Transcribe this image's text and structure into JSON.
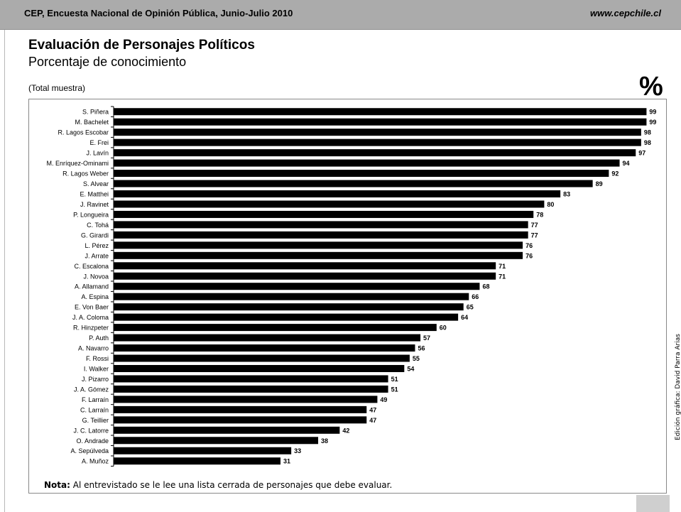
{
  "header": {
    "left_text": "CEP, Encuesta Nacional de Opinión Pública, Junio-Julio 2010",
    "right_text": "www.cepchile.cl"
  },
  "page": {
    "title": "Evaluación de Personajes Políticos",
    "subtitle": "Porcentaje de conocimiento",
    "sample": "(Total muestra)",
    "percent_sign": "%",
    "note_label": "Nota:",
    "note_text": " Al entrevistado se le lee una lista cerrada de personajes que debe evaluar.",
    "credit": "Edición gráfica: David Parra Arias"
  },
  "colors": {
    "bar": "#000000",
    "header": "#ababab"
  },
  "chart_data": {
    "type": "bar",
    "orientation": "horizontal",
    "title": "Evaluación de Personajes Políticos",
    "subtitle": "Porcentaje de conocimiento",
    "xlim": [
      0,
      100
    ],
    "grid": false,
    "categories": [
      "S. Piñera",
      "M. Bachelet",
      "R. Lagos Escobar",
      "E. Frei",
      "J. Lavín",
      "M. Enríquez-Ominami",
      "R. Lagos Weber",
      "S. Alvear",
      "E. Matthei",
      "J. Ravinet",
      "P. Longueira",
      "C. Tohá",
      "G. Girardi",
      "L. Pérez",
      "J. Arrate",
      "C. Escalona",
      "J. Novoa",
      "A. Allamand",
      "A. Espina",
      "E. Von Baer",
      "J. A. Coloma",
      "R. Hinzpeter",
      "P. Auth",
      "A. Navarro",
      "F. Rossi",
      "I. Walker",
      "J. Pizarro",
      "J. A. Gómez",
      "F. Larraín",
      "C. Larraín",
      "G. Teillier",
      "J. C. Latorre",
      "O. Andrade",
      "A. Sepúlveda",
      "A. Muñoz"
    ],
    "values": [
      99,
      99,
      98,
      98,
      97,
      94,
      92,
      89,
      83,
      80,
      78,
      77,
      77,
      76,
      76,
      71,
      71,
      68,
      66,
      65,
      64,
      60,
      57,
      56,
      55,
      54,
      51,
      51,
      49,
      47,
      47,
      42,
      38,
      33,
      31
    ]
  }
}
